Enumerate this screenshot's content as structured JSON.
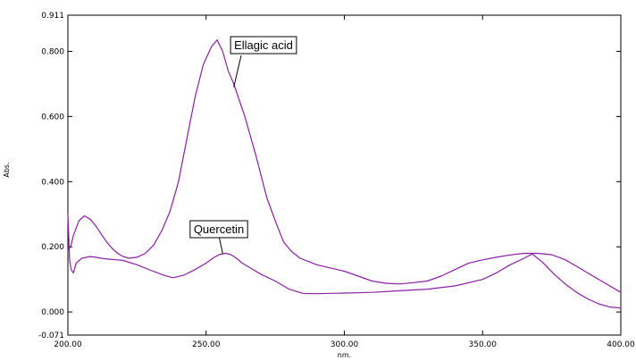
{
  "chart_data": {
    "type": "line",
    "xlabel": "nm.",
    "ylabel": "Abs.",
    "xlim": [
      200,
      400
    ],
    "ylim": [
      -0.071,
      0.911
    ],
    "grid": false,
    "x_ticks": [
      "200.00",
      "250.00",
      "300.00",
      "350.00",
      "400.00"
    ],
    "y_ticks": [
      "0.911",
      "0.800",
      "0.600",
      "0.400",
      "0.200",
      "0.000",
      "-0.071"
    ],
    "series": [
      {
        "name": "Ellagic acid",
        "color": "#8b1fa3",
        "x": [
          200,
          201,
          202,
          204,
          206,
          208,
          210,
          212,
          214,
          216,
          218,
          220,
          222,
          225,
          228,
          231,
          234,
          237,
          240,
          243,
          246,
          249,
          252,
          254,
          256,
          258,
          260,
          262,
          264,
          266,
          268,
          270,
          272,
          275,
          278,
          281,
          284,
          287,
          290,
          295,
          300,
          305,
          310,
          315,
          320,
          325,
          330,
          335,
          340,
          345,
          350,
          355,
          360,
          365,
          370,
          375,
          380,
          385,
          390,
          395,
          400
        ],
        "y": [
          0.19,
          0.2,
          0.235,
          0.28,
          0.295,
          0.285,
          0.265,
          0.24,
          0.215,
          0.195,
          0.18,
          0.17,
          0.165,
          0.168,
          0.18,
          0.205,
          0.25,
          0.31,
          0.4,
          0.53,
          0.66,
          0.76,
          0.815,
          0.835,
          0.8,
          0.74,
          0.7,
          0.65,
          0.6,
          0.54,
          0.48,
          0.415,
          0.35,
          0.28,
          0.215,
          0.185,
          0.165,
          0.155,
          0.145,
          0.135,
          0.125,
          0.11,
          0.095,
          0.088,
          0.086,
          0.09,
          0.095,
          0.11,
          0.13,
          0.15,
          0.16,
          0.168,
          0.175,
          0.18,
          0.18,
          0.176,
          0.16,
          0.135,
          0.11,
          0.085,
          0.06
        ]
      },
      {
        "name": "Quercetin",
        "color": "#8b1fa3",
        "x": [
          200,
          200.6,
          201.2,
          202,
          203,
          205,
          208,
          210,
          212,
          215,
          218,
          220,
          225,
          230,
          235,
          238,
          242,
          246,
          250,
          253,
          255,
          257,
          259,
          261,
          263,
          266,
          270,
          275,
          280,
          285,
          290,
          300,
          310,
          320,
          330,
          340,
          350,
          355,
          360,
          365,
          368,
          372,
          376,
          380,
          384,
          388,
          392,
          396,
          400
        ],
        "y": [
          0.3,
          0.16,
          0.13,
          0.12,
          0.15,
          0.165,
          0.17,
          0.168,
          0.165,
          0.162,
          0.16,
          0.158,
          0.145,
          0.128,
          0.112,
          0.105,
          0.113,
          0.13,
          0.15,
          0.168,
          0.177,
          0.18,
          0.176,
          0.165,
          0.15,
          0.135,
          0.115,
          0.095,
          0.07,
          0.057,
          0.056,
          0.058,
          0.06,
          0.065,
          0.07,
          0.08,
          0.1,
          0.12,
          0.145,
          0.165,
          0.178,
          0.15,
          0.115,
          0.085,
          0.06,
          0.04,
          0.025,
          0.015,
          0.012
        ]
      }
    ],
    "annotations": [
      {
        "text": "Ellagic acid",
        "x": 260,
        "y": 0.69
      },
      {
        "text": "Quercetin",
        "x": 256,
        "y": 0.18
      }
    ]
  }
}
